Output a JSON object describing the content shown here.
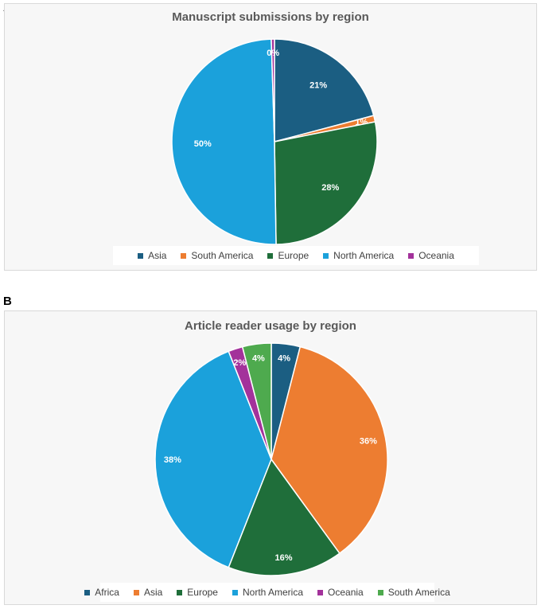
{
  "panels": [
    {
      "letter": "A"
    },
    {
      "letter": "B"
    }
  ],
  "chart_data": [
    {
      "type": "pie",
      "title": "Manuscript submissions by region",
      "categories": [
        "Asia",
        "South America",
        "Europe",
        "North America",
        "Oceania"
      ],
      "values": [
        21,
        1,
        28,
        50,
        0.5
      ],
      "labels": [
        "21%",
        "1%",
        "28%",
        "50%",
        "0%"
      ],
      "colors": [
        "#1b5e82",
        "#ed7d31",
        "#1f6e3a",
        "#1ba1db",
        "#a3329b"
      ],
      "legend_position": "bottom"
    },
    {
      "type": "pie",
      "title": "Article reader usage by region",
      "categories": [
        "Africa",
        "Asia",
        "Europe",
        "North America",
        "Oceania",
        "South America"
      ],
      "values": [
        4,
        36,
        16,
        38,
        2,
        4
      ],
      "labels": [
        "4%",
        "36%",
        "16%",
        "38%",
        "2%",
        "4%"
      ],
      "colors": [
        "#1b5e82",
        "#ed7d31",
        "#1f6e3a",
        "#1ba1db",
        "#a3329b",
        "#4eaa4e"
      ],
      "legend_position": "bottom"
    }
  ]
}
